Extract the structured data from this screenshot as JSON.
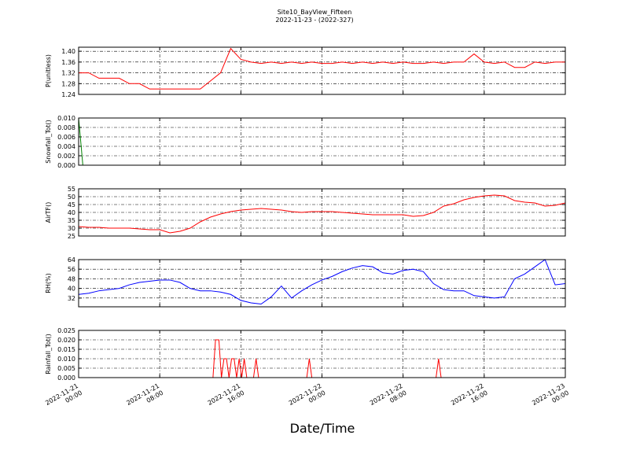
{
  "title": "Site10_BayView_Fifteen",
  "subtitle": "2022-11-23 - (2022-327)",
  "x_label": "Date/Time",
  "chart_data": [
    {
      "type": "line",
      "y_label": "P(unitless)",
      "color": "#ff0000",
      "ylim": [
        1.24,
        1.415
      ],
      "yticks": [
        {
          "value": 1.24,
          "label": "1.24"
        },
        {
          "value": 1.28,
          "label": "1.28"
        },
        {
          "value": 1.32,
          "label": "1.32"
        },
        {
          "value": 1.36,
          "label": "1.36"
        },
        {
          "value": 1.4,
          "label": "1.40"
        }
      ],
      "xlim": [
        "2022-11-21 00:00",
        "2022-11-23 00:00"
      ],
      "xticks": [
        "2022-11-21 00:00",
        "2022-11-21 08:00",
        "2022-11-21 16:00",
        "2022-11-22 00:00",
        "2022-11-22 08:00",
        "2022-11-22 16:00",
        "2022-11-23 00:00"
      ],
      "grid": true,
      "x": [
        "2022-11-21 00:00",
        "2022-11-21 01:00",
        "2022-11-21 02:00",
        "2022-11-21 03:00",
        "2022-11-21 04:00",
        "2022-11-21 05:00",
        "2022-11-21 06:00",
        "2022-11-21 07:00",
        "2022-11-21 08:00",
        "2022-11-21 09:00",
        "2022-11-21 10:00",
        "2022-11-21 11:00",
        "2022-11-21 12:00",
        "2022-11-21 13:00",
        "2022-11-21 14:00",
        "2022-11-21 15:00",
        "2022-11-21 16:00",
        "2022-11-21 17:00",
        "2022-11-21 18:00",
        "2022-11-21 19:00",
        "2022-11-21 20:00",
        "2022-11-21 21:00",
        "2022-11-21 22:00",
        "2022-11-21 23:00",
        "2022-11-22 00:00",
        "2022-11-22 01:00",
        "2022-11-22 02:00",
        "2022-11-22 03:00",
        "2022-11-22 04:00",
        "2022-11-22 05:00",
        "2022-11-22 06:00",
        "2022-11-22 07:00",
        "2022-11-22 08:00",
        "2022-11-22 09:00",
        "2022-11-22 10:00",
        "2022-11-22 11:00",
        "2022-11-22 12:00",
        "2022-11-22 13:00",
        "2022-11-22 14:00",
        "2022-11-22 15:00",
        "2022-11-22 16:00",
        "2022-11-22 17:00",
        "2022-11-22 18:00",
        "2022-11-22 19:00",
        "2022-11-22 20:00",
        "2022-11-22 21:00",
        "2022-11-22 22:00",
        "2022-11-22 23:00",
        "2022-11-23 00:00"
      ],
      "values": [
        1.32,
        1.32,
        1.3,
        1.3,
        1.3,
        1.28,
        1.28,
        1.26,
        1.26,
        1.26,
        1.26,
        1.26,
        1.26,
        1.29,
        1.32,
        1.41,
        1.37,
        1.36,
        1.355,
        1.36,
        1.355,
        1.36,
        1.355,
        1.36,
        1.355,
        1.355,
        1.36,
        1.355,
        1.36,
        1.355,
        1.36,
        1.355,
        1.36,
        1.355,
        1.355,
        1.36,
        1.355,
        1.36,
        1.36,
        1.39,
        1.36,
        1.355,
        1.36,
        1.34,
        1.34,
        1.36,
        1.355,
        1.36,
        1.36
      ]
    },
    {
      "type": "line",
      "y_label": "Snowfall_Tot()",
      "color": "#008000",
      "ylim": [
        0,
        0.01
      ],
      "yticks": [
        {
          "value": 0,
          "label": "0.000"
        },
        {
          "value": 0.002,
          "label": "0.002"
        },
        {
          "value": 0.004,
          "label": "0.004"
        },
        {
          "value": 0.006,
          "label": "0.006"
        },
        {
          "value": 0.008,
          "label": "0.008"
        },
        {
          "value": 0.01,
          "label": "0.010"
        }
      ],
      "xlim": [
        "2022-11-21 00:00",
        "2022-11-23 00:00"
      ],
      "xticks": [
        "2022-11-21 00:00",
        "2022-11-21 08:00",
        "2022-11-21 16:00",
        "2022-11-22 00:00",
        "2022-11-22 08:00",
        "2022-11-22 16:00",
        "2022-11-23 00:00"
      ],
      "grid": true,
      "x": [
        "2022-11-21 00:00",
        "2022-11-21 00:25",
        "2022-11-23 00:00"
      ],
      "values": [
        0.01,
        0,
        0
      ]
    },
    {
      "type": "line",
      "y_label": "AirTF()",
      "color": "#ff0000",
      "ylim": [
        25,
        55
      ],
      "yticks": [
        25,
        30,
        35,
        40,
        45,
        50,
        55
      ],
      "xlim": [
        "2022-11-21 00:00",
        "2022-11-23 00:00"
      ],
      "xticks": [
        "2022-11-21 00:00",
        "2022-11-21 08:00",
        "2022-11-21 16:00",
        "2022-11-22 00:00",
        "2022-11-22 08:00",
        "2022-11-22 16:00",
        "2022-11-23 00:00"
      ],
      "grid": true,
      "x": [
        "2022-11-21 00:00",
        "2022-11-21 01:00",
        "2022-11-21 02:00",
        "2022-11-21 03:00",
        "2022-11-21 04:00",
        "2022-11-21 05:00",
        "2022-11-21 06:00",
        "2022-11-21 07:00",
        "2022-11-21 08:00",
        "2022-11-21 09:00",
        "2022-11-21 10:00",
        "2022-11-21 11:00",
        "2022-11-21 12:00",
        "2022-11-21 13:00",
        "2022-11-21 14:00",
        "2022-11-21 15:00",
        "2022-11-21 16:00",
        "2022-11-21 17:00",
        "2022-11-21 18:00",
        "2022-11-21 19:00",
        "2022-11-21 20:00",
        "2022-11-21 21:00",
        "2022-11-21 22:00",
        "2022-11-21 23:00",
        "2022-11-22 00:00",
        "2022-11-22 01:00",
        "2022-11-22 02:00",
        "2022-11-22 03:00",
        "2022-11-22 04:00",
        "2022-11-22 05:00",
        "2022-11-22 06:00",
        "2022-11-22 07:00",
        "2022-11-22 08:00",
        "2022-11-22 09:00",
        "2022-11-22 10:00",
        "2022-11-22 11:00",
        "2022-11-22 12:00",
        "2022-11-22 13:00",
        "2022-11-22 14:00",
        "2022-11-22 15:00",
        "2022-11-22 16:00",
        "2022-11-22 17:00",
        "2022-11-22 18:00",
        "2022-11-22 19:00",
        "2022-11-22 20:00",
        "2022-11-22 21:00",
        "2022-11-22 22:00",
        "2022-11-22 23:00",
        "2022-11-23 00:00"
      ],
      "values": [
        31,
        30.5,
        30.5,
        30,
        30,
        30,
        29.5,
        29,
        29,
        27,
        28,
        30,
        34,
        37,
        39,
        40.5,
        41.5,
        42,
        42.5,
        42,
        41.5,
        40.5,
        40,
        40.5,
        40.5,
        40.5,
        40,
        39.5,
        39,
        38.5,
        38.5,
        38.5,
        38.5,
        37.5,
        38,
        40,
        44,
        45.5,
        48,
        49.5,
        50.5,
        51,
        50.5,
        47.5,
        46.5,
        46,
        44,
        44.5,
        46
      ]
    },
    {
      "type": "line",
      "y_label": "RH(%)",
      "color": "#0000ff",
      "ylim": [
        24.7,
        64
      ],
      "yticks": [
        32,
        40,
        48,
        56,
        64
      ],
      "xlim": [
        "2022-11-21 00:00",
        "2022-11-23 00:00"
      ],
      "xticks": [
        "2022-11-21 00:00",
        "2022-11-21 08:00",
        "2022-11-21 16:00",
        "2022-11-22 00:00",
        "2022-11-22 08:00",
        "2022-11-22 16:00",
        "2022-11-23 00:00"
      ],
      "grid": true,
      "x": [
        "2022-11-21 00:00",
        "2022-11-21 01:00",
        "2022-11-21 02:00",
        "2022-11-21 03:00",
        "2022-11-21 04:00",
        "2022-11-21 05:00",
        "2022-11-21 06:00",
        "2022-11-21 07:00",
        "2022-11-21 08:00",
        "2022-11-21 09:00",
        "2022-11-21 10:00",
        "2022-11-21 11:00",
        "2022-11-21 12:00",
        "2022-11-21 13:00",
        "2022-11-21 14:00",
        "2022-11-21 15:00",
        "2022-11-21 16:00",
        "2022-11-21 17:00",
        "2022-11-21 18:00",
        "2022-11-21 19:00",
        "2022-11-21 20:00",
        "2022-11-21 21:00",
        "2022-11-21 22:00",
        "2022-11-21 23:00",
        "2022-11-22 00:00",
        "2022-11-22 01:00",
        "2022-11-22 02:00",
        "2022-11-22 03:00",
        "2022-11-22 04:00",
        "2022-11-22 05:00",
        "2022-11-22 06:00",
        "2022-11-22 07:00",
        "2022-11-22 08:00",
        "2022-11-22 09:00",
        "2022-11-22 10:00",
        "2022-11-22 11:00",
        "2022-11-22 12:00",
        "2022-11-22 13:00",
        "2022-11-22 14:00",
        "2022-11-22 15:00",
        "2022-11-22 16:00",
        "2022-11-22 17:00",
        "2022-11-22 18:00",
        "2022-11-22 19:00",
        "2022-11-22 20:00",
        "2022-11-22 21:00",
        "2022-11-22 22:00",
        "2022-11-22 23:00",
        "2022-11-23 00:00"
      ],
      "values": [
        35,
        36,
        38,
        39,
        40,
        43,
        45,
        46,
        47,
        47,
        45,
        40,
        38,
        38,
        37,
        35,
        30,
        28,
        27,
        33,
        42,
        32,
        38,
        43,
        47,
        50,
        54,
        57,
        59,
        58,
        53,
        52,
        55,
        56,
        54,
        44,
        39,
        38,
        38,
        34,
        33,
        32,
        33,
        48,
        52,
        58,
        64,
        43,
        44
      ]
    },
    {
      "type": "line",
      "y_label": "Rainfall_Tot()",
      "color": "#ff0000",
      "ylim": [
        0,
        0.025
      ],
      "yticks": [
        {
          "value": 0,
          "label": "0.000"
        },
        {
          "value": 0.005,
          "label": "0.005"
        },
        {
          "value": 0.01,
          "label": "0.010"
        },
        {
          "value": 0.015,
          "label": "0.015"
        },
        {
          "value": 0.02,
          "label": "0.020"
        },
        {
          "value": 0.025,
          "label": "0.025"
        }
      ],
      "xlim": [
        "2022-11-21 00:00",
        "2022-11-23 00:00"
      ],
      "xticks": [
        "2022-11-21 00:00",
        "2022-11-21 08:00",
        "2022-11-21 16:00",
        "2022-11-22 00:00",
        "2022-11-22 08:00",
        "2022-11-22 16:00",
        "2022-11-23 00:00"
      ],
      "grid": true,
      "x": [
        "2022-11-21 00:00",
        "2022-11-21 13:15",
        "2022-11-21 13:30",
        "2022-11-21 13:50",
        "2022-11-21 14:05",
        "2022-11-21 14:20",
        "2022-11-21 14:35",
        "2022-11-21 14:50",
        "2022-11-21 15:05",
        "2022-11-21 15:20",
        "2022-11-21 15:35",
        "2022-11-21 15:50",
        "2022-11-21 16:05",
        "2022-11-21 16:20",
        "2022-11-21 16:35",
        "2022-11-21 17:15",
        "2022-11-21 17:30",
        "2022-11-21 17:45",
        "2022-11-21 22:30",
        "2022-11-21 22:45",
        "2022-11-21 23:00",
        "2022-11-22 11:15",
        "2022-11-22 11:30",
        "2022-11-22 11:45",
        "2022-11-23 00:00"
      ],
      "values": [
        0,
        0,
        0.02,
        0.02,
        0,
        0.01,
        0.01,
        0,
        0.01,
        0.01,
        0,
        0.01,
        0,
        0.01,
        0,
        0,
        0.01,
        0,
        0,
        0.01,
        0,
        0,
        0.01,
        0,
        0
      ]
    }
  ]
}
